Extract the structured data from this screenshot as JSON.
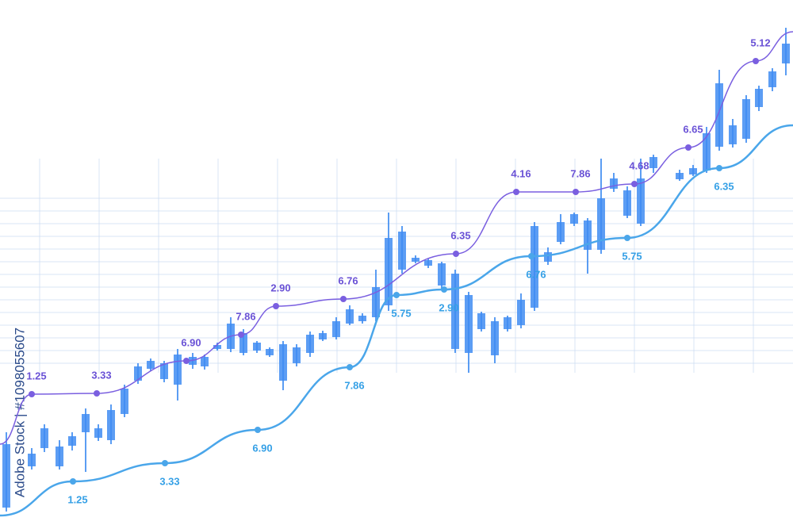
{
  "watermark": "Adobe Stock | #1098055607",
  "chart_data": [
    {
      "type": "candlestick",
      "color": "#3f8cf2",
      "xlim": [
        0,
        1000
      ],
      "ylim": [
        0,
        667
      ],
      "x": [
        8,
        40,
        56,
        75,
        91,
        108,
        124,
        140,
        157,
        174,
        190,
        207,
        224,
        243,
        258,
        274,
        291,
        307,
        324,
        340,
        357,
        374,
        391,
        407,
        424,
        441,
        457,
        474,
        490,
        507,
        524,
        540,
        557,
        574,
        591,
        607,
        624,
        640,
        657,
        674,
        691,
        707,
        724,
        741,
        758,
        774,
        791,
        808,
        824,
        857,
        874,
        891,
        907,
        924,
        941,
        957,
        974,
        991
      ],
      "open": [
        27,
        79,
        102,
        79,
        105,
        122,
        115,
        112,
        145,
        187,
        202,
        189,
        182,
        207,
        205,
        227,
        227,
        222,
        225,
        219,
        187,
        209,
        222,
        239,
        242,
        259,
        262,
        267,
        282,
        327,
        337,
        332,
        307,
        227,
        222,
        252,
        219,
        252,
        257,
        279,
        337,
        362,
        385,
        352,
        352,
        429,
        395,
        385,
        455,
        441,
        447,
        452,
        482,
        485,
        492,
        532,
        557,
        587
      ],
      "close": [
        107,
        95,
        127,
        104,
        117,
        145,
        127,
        150,
        177,
        205,
        212,
        209,
        220,
        217,
        217,
        232,
        259,
        247,
        235,
        227,
        233,
        229,
        245,
        247,
        262,
        277,
        269,
        305,
        367,
        375,
        342,
        339,
        335,
        322,
        295,
        272,
        262,
        267,
        289,
        382,
        349,
        387,
        397,
        389,
        417,
        442,
        427,
        442,
        469,
        449,
        455,
        499,
        562,
        509,
        542,
        555,
        577,
        612
      ],
      "high": [
        122,
        102,
        132,
        112,
        122,
        152,
        132,
        157,
        182,
        209,
        215,
        212,
        227,
        222,
        220,
        235,
        267,
        252,
        237,
        229,
        237,
        233,
        249,
        250,
        267,
        282,
        272,
        327,
        399,
        382,
        345,
        341,
        337,
        327,
        299,
        274,
        267,
        269,
        297,
        387,
        355,
        397,
        399,
        392,
        467,
        449,
        432,
        467,
        472,
        453,
        459,
        507,
        579,
        517,
        547,
        559,
        581,
        632
      ],
      "low": [
        22,
        75,
        97,
        75,
        99,
        72,
        111,
        107,
        141,
        183,
        199,
        185,
        162,
        202,
        201,
        225,
        223,
        219,
        222,
        217,
        175,
        205,
        217,
        237,
        239,
        257,
        259,
        262,
        275,
        322,
        335,
        329,
        302,
        222,
        197,
        249,
        209,
        249,
        253,
        275,
        333,
        359,
        382,
        322,
        347,
        425,
        392,
        382,
        449,
        439,
        445,
        449,
        477,
        481,
        487,
        527,
        552,
        572
      ]
    },
    {
      "type": "line",
      "xlim": [
        0,
        1000
      ],
      "ylim": [
        0,
        667
      ],
      "series": [
        {
          "color": "#7a5fe0",
          "label_color": "#6a52d6",
          "x": [
            0,
            40,
            122,
            235,
            304,
            348,
            433,
            575,
            651,
            726,
            800,
            868,
            953,
            1000
          ],
          "values": [
            107,
            170,
            171,
            212,
            245,
            281,
            290,
            347,
            425,
            425,
            435,
            481,
            590,
            627
          ],
          "point_labels": [
            null,
            "1.25",
            "3.33",
            "6.90",
            "7.86",
            "2.90",
            "6.76",
            "6.35",
            "4.16",
            "7.86",
            "4.68",
            "6.65",
            "5.12",
            null
          ]
        },
        {
          "color": "#4aa6ea",
          "label_color": "#35a0e6",
          "x": [
            0,
            92,
            208,
            325,
            441,
            500,
            560,
            670,
            791,
            907,
            1000
          ],
          "values": [
            17,
            60,
            83,
            125,
            204,
            295,
            302,
            344,
            367,
            455,
            509
          ],
          "point_labels": [
            null,
            "1.25",
            "3.33",
            "6.90",
            "7.86",
            "5.75",
            "2.90",
            "6.76",
            "5.75",
            "6.35",
            null
          ]
        }
      ]
    }
  ]
}
